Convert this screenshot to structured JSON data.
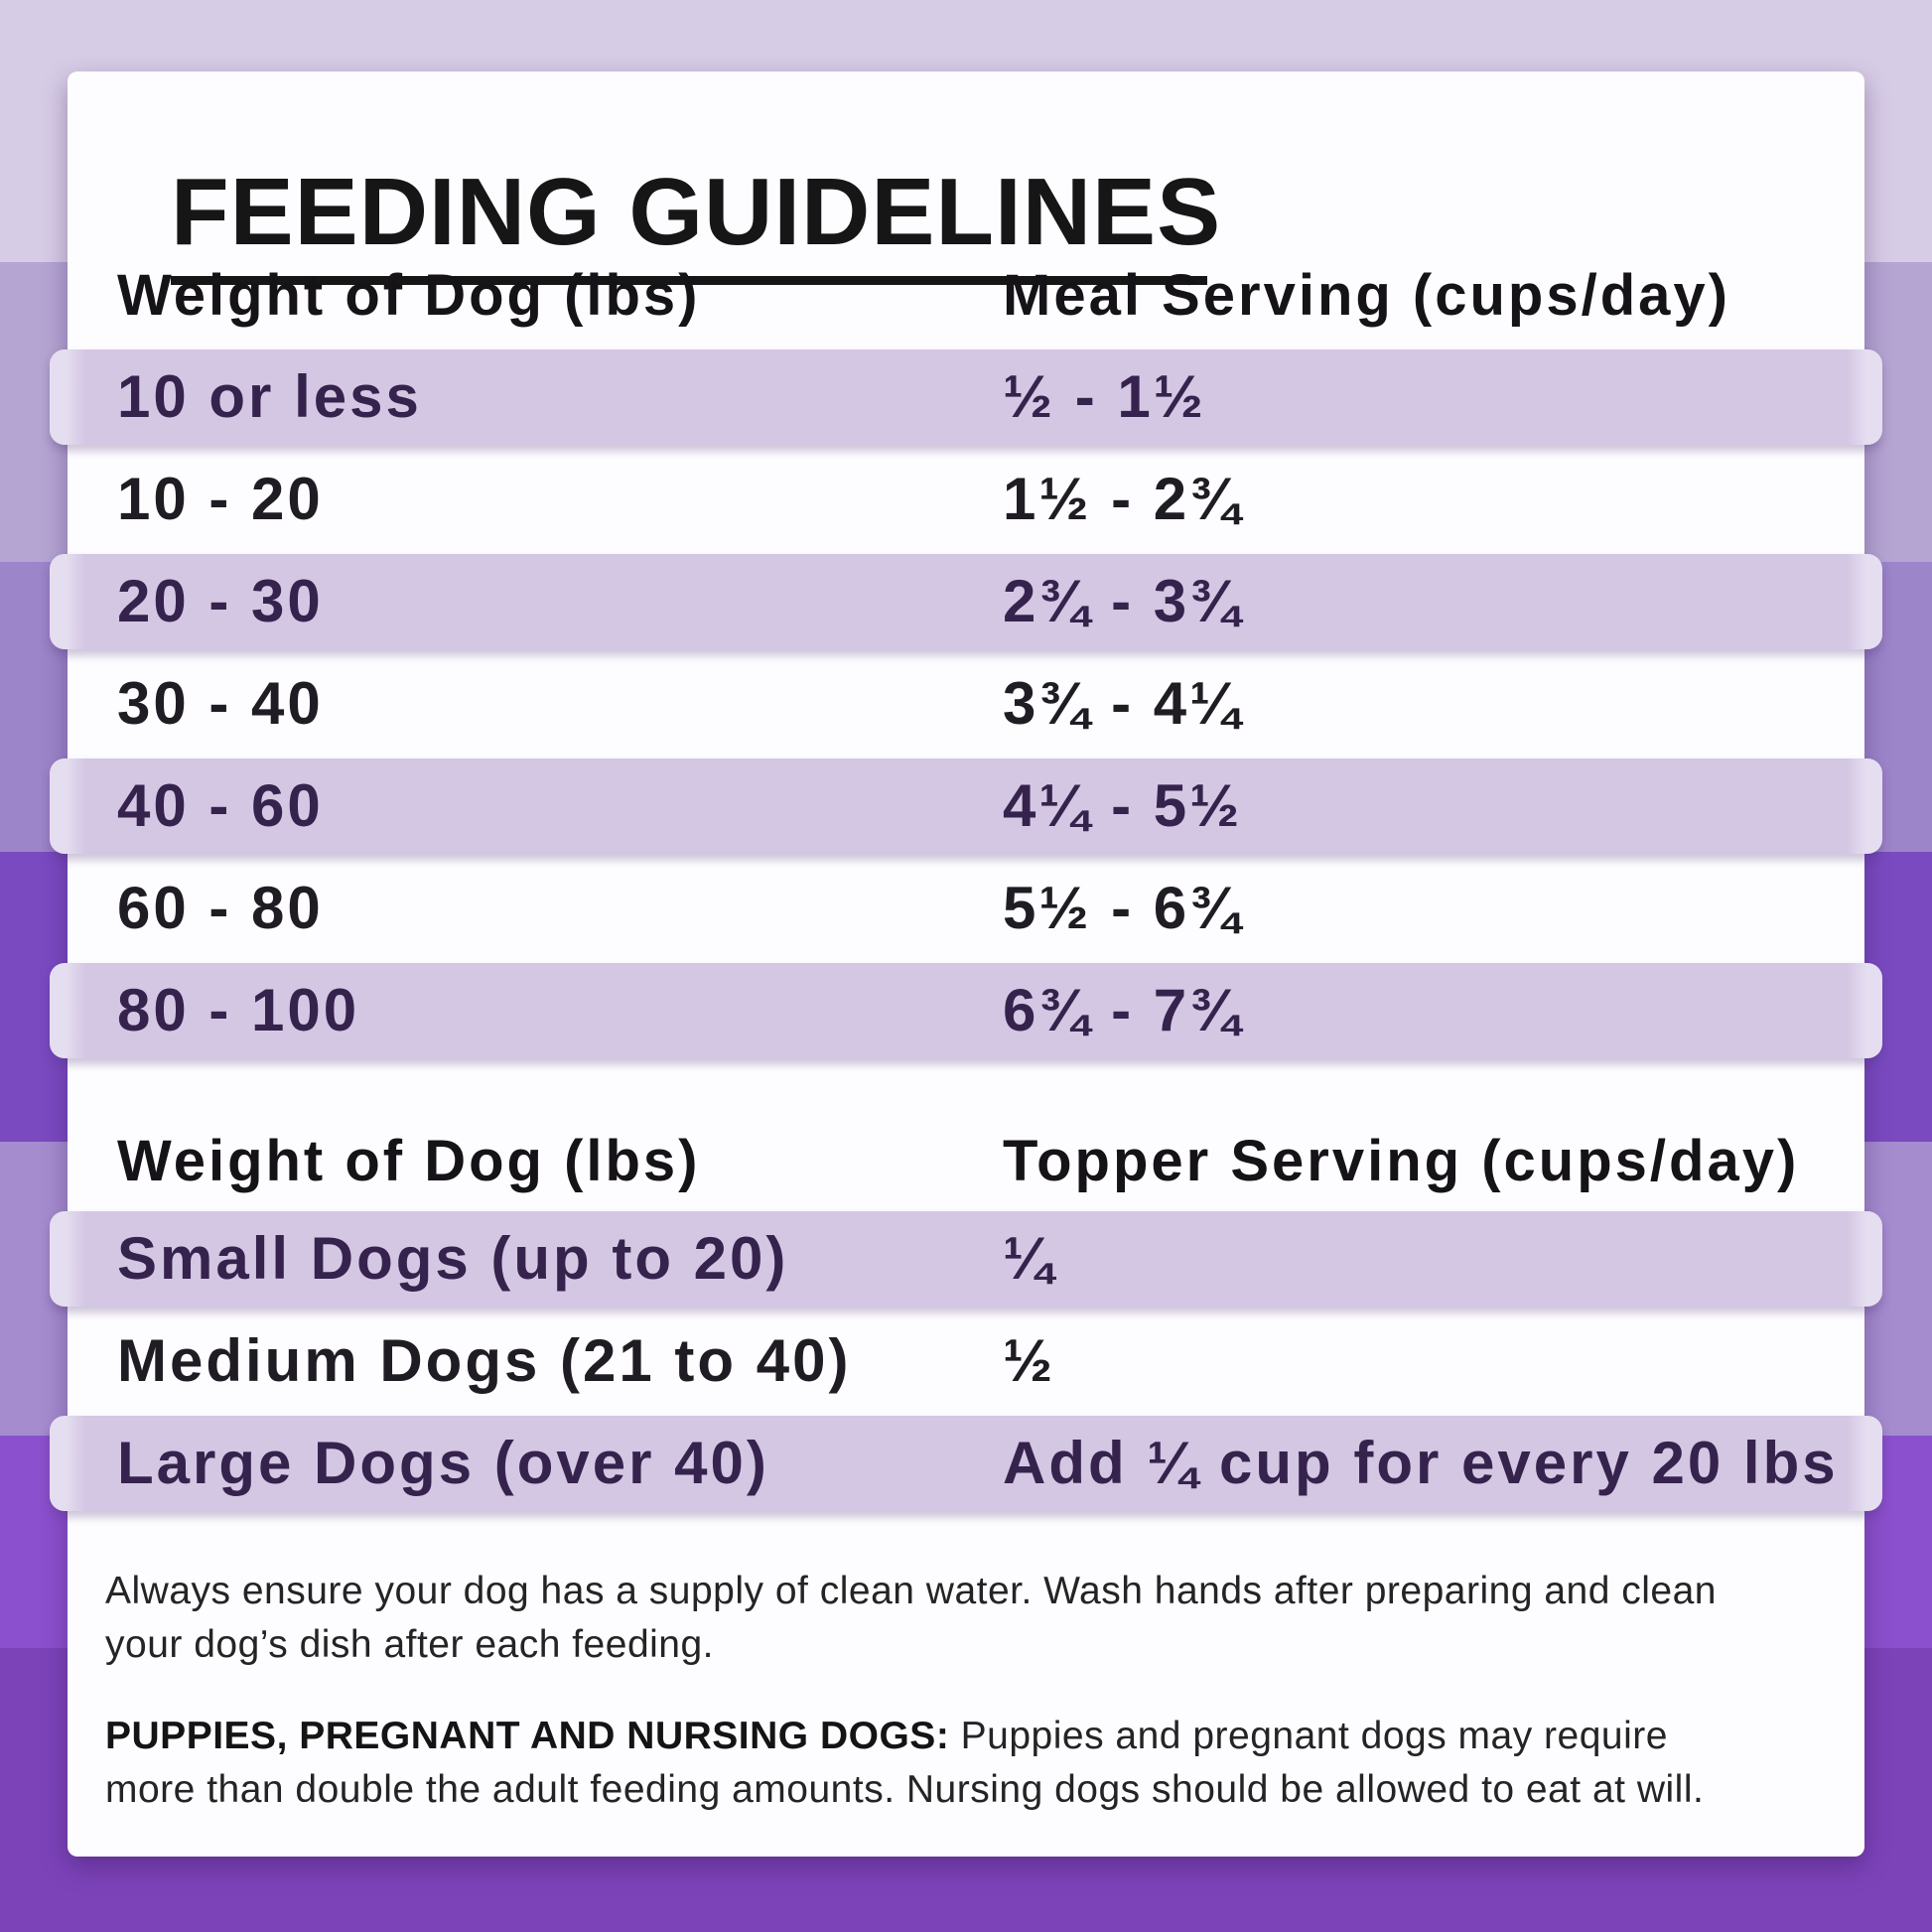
{
  "header": {
    "title": "FEEDING GUIDELINES"
  },
  "tables": [
    {
      "name": "meal-serving",
      "col1_header": "Weight of Dog (lbs)",
      "col2_header": "Meal Serving (cups/day)",
      "rows": [
        {
          "weight": "10 or less",
          "serving": "½ - 1½"
        },
        {
          "weight": "10 - 20",
          "serving": "1½ - 2¾"
        },
        {
          "weight": "20 - 30",
          "serving": "2¾ - 3¾"
        },
        {
          "weight": "30 - 40",
          "serving": "3¾ - 4¼"
        },
        {
          "weight": "40 - 60",
          "serving": "4¼ - 5½"
        },
        {
          "weight": "60 - 80",
          "serving": "5½ - 6¾"
        },
        {
          "weight": "80 - 100",
          "serving": "6¾ - 7¾"
        }
      ]
    },
    {
      "name": "topper-serving",
      "col1_header": "Weight of Dog (lbs)",
      "col2_header": "Topper Serving (cups/day)",
      "rows": [
        {
          "weight": "Small Dogs (up to 20)",
          "serving": "¼"
        },
        {
          "weight": "Medium Dogs (21 to 40)",
          "serving": "½"
        },
        {
          "weight": "Large Dogs (over 40)",
          "serving": "Add ¼ cup for every 20 lbs"
        }
      ]
    }
  ],
  "footer": {
    "note1": "Always ensure your dog has a supply of clean water. Wash hands after preparing and clean\nyour dog’s dish after each feeding.",
    "note2_label": "PUPPIES, PREGNANT AND NURSING DOGS:",
    "note2_text": " Puppies and pregnant dogs may require\nmore than double the adult feeding amounts. Nursing dogs should be allowed to eat at will."
  },
  "colors": {
    "background_stripes": [
      "#d7cce6",
      "#b5a5d3",
      "#9d85ca",
      "#7a4ac1",
      "#a58ccf",
      "#8b50cd",
      "#7c43b9"
    ],
    "card": "#fdfcfe",
    "row_band": "#d4c7e3",
    "row_band_text": "#35234d",
    "text": "#1d1a20"
  }
}
